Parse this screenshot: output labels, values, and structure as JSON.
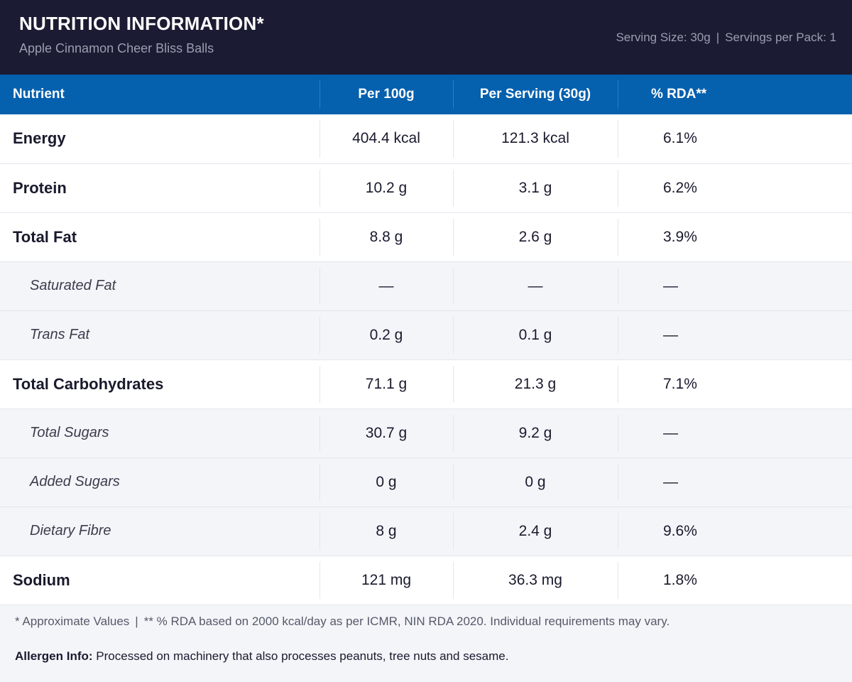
{
  "header": {
    "title": "NUTRITION INFORMATION*",
    "subtitle": "Apple Cinnamon Cheer Bliss Balls",
    "serving_size": "Serving Size: 30g",
    "separator": "|",
    "servings_per_pack": "Servings per Pack: 1"
  },
  "table": {
    "columns": [
      "Nutrient",
      "Per 100g",
      "Per Serving (30g)",
      "% RDA**"
    ],
    "rows": [
      {
        "name": "Energy",
        "per100": "404.4 kcal",
        "serving": "121.3 kcal",
        "rda": "6.1%",
        "type": "main"
      },
      {
        "name": "Protein",
        "per100": "10.2 g",
        "serving": "3.1 g",
        "rda": "6.2%",
        "type": "main"
      },
      {
        "name": "Total Fat",
        "per100": "8.8 g",
        "serving": "2.6 g",
        "rda": "3.9%",
        "type": "main"
      },
      {
        "name": "Saturated Fat",
        "per100": "—",
        "serving": "—",
        "rda": "—",
        "type": "sub"
      },
      {
        "name": "Trans Fat",
        "per100": "0.2 g",
        "serving": "0.1 g",
        "rda": "—",
        "type": "sub"
      },
      {
        "name": "Total Carbohydrates",
        "per100": "71.1 g",
        "serving": "21.3 g",
        "rda": "7.1%",
        "type": "main"
      },
      {
        "name": "Total Sugars",
        "per100": "30.7 g",
        "serving": "9.2 g",
        "rda": "—",
        "type": "sub"
      },
      {
        "name": "Added Sugars",
        "per100": "0 g",
        "serving": "0 g",
        "rda": "—",
        "type": "sub"
      },
      {
        "name": "Dietary Fibre",
        "per100": "8 g",
        "serving": "2.4 g",
        "rda": "9.6%",
        "type": "sub"
      },
      {
        "name": "Sodium",
        "per100": "121 mg",
        "serving": "36.3 mg",
        "rda": "1.8%",
        "type": "main"
      }
    ]
  },
  "footer": {
    "footnote_a": "* Approximate Values",
    "separator": "|",
    "footnote_b": "** % RDA based on 2000 kcal/day as per ICMR, NIN RDA 2020. Individual requirements may vary.",
    "allergen_label": "Allergen Info:",
    "allergen_text": " Processed on machinery that also processes peanuts, tree nuts and sesame."
  },
  "colors": {
    "header_bg": "#1b1b33",
    "table_header_bg": "#0560ae",
    "sub_row_bg": "#f4f5f9"
  }
}
